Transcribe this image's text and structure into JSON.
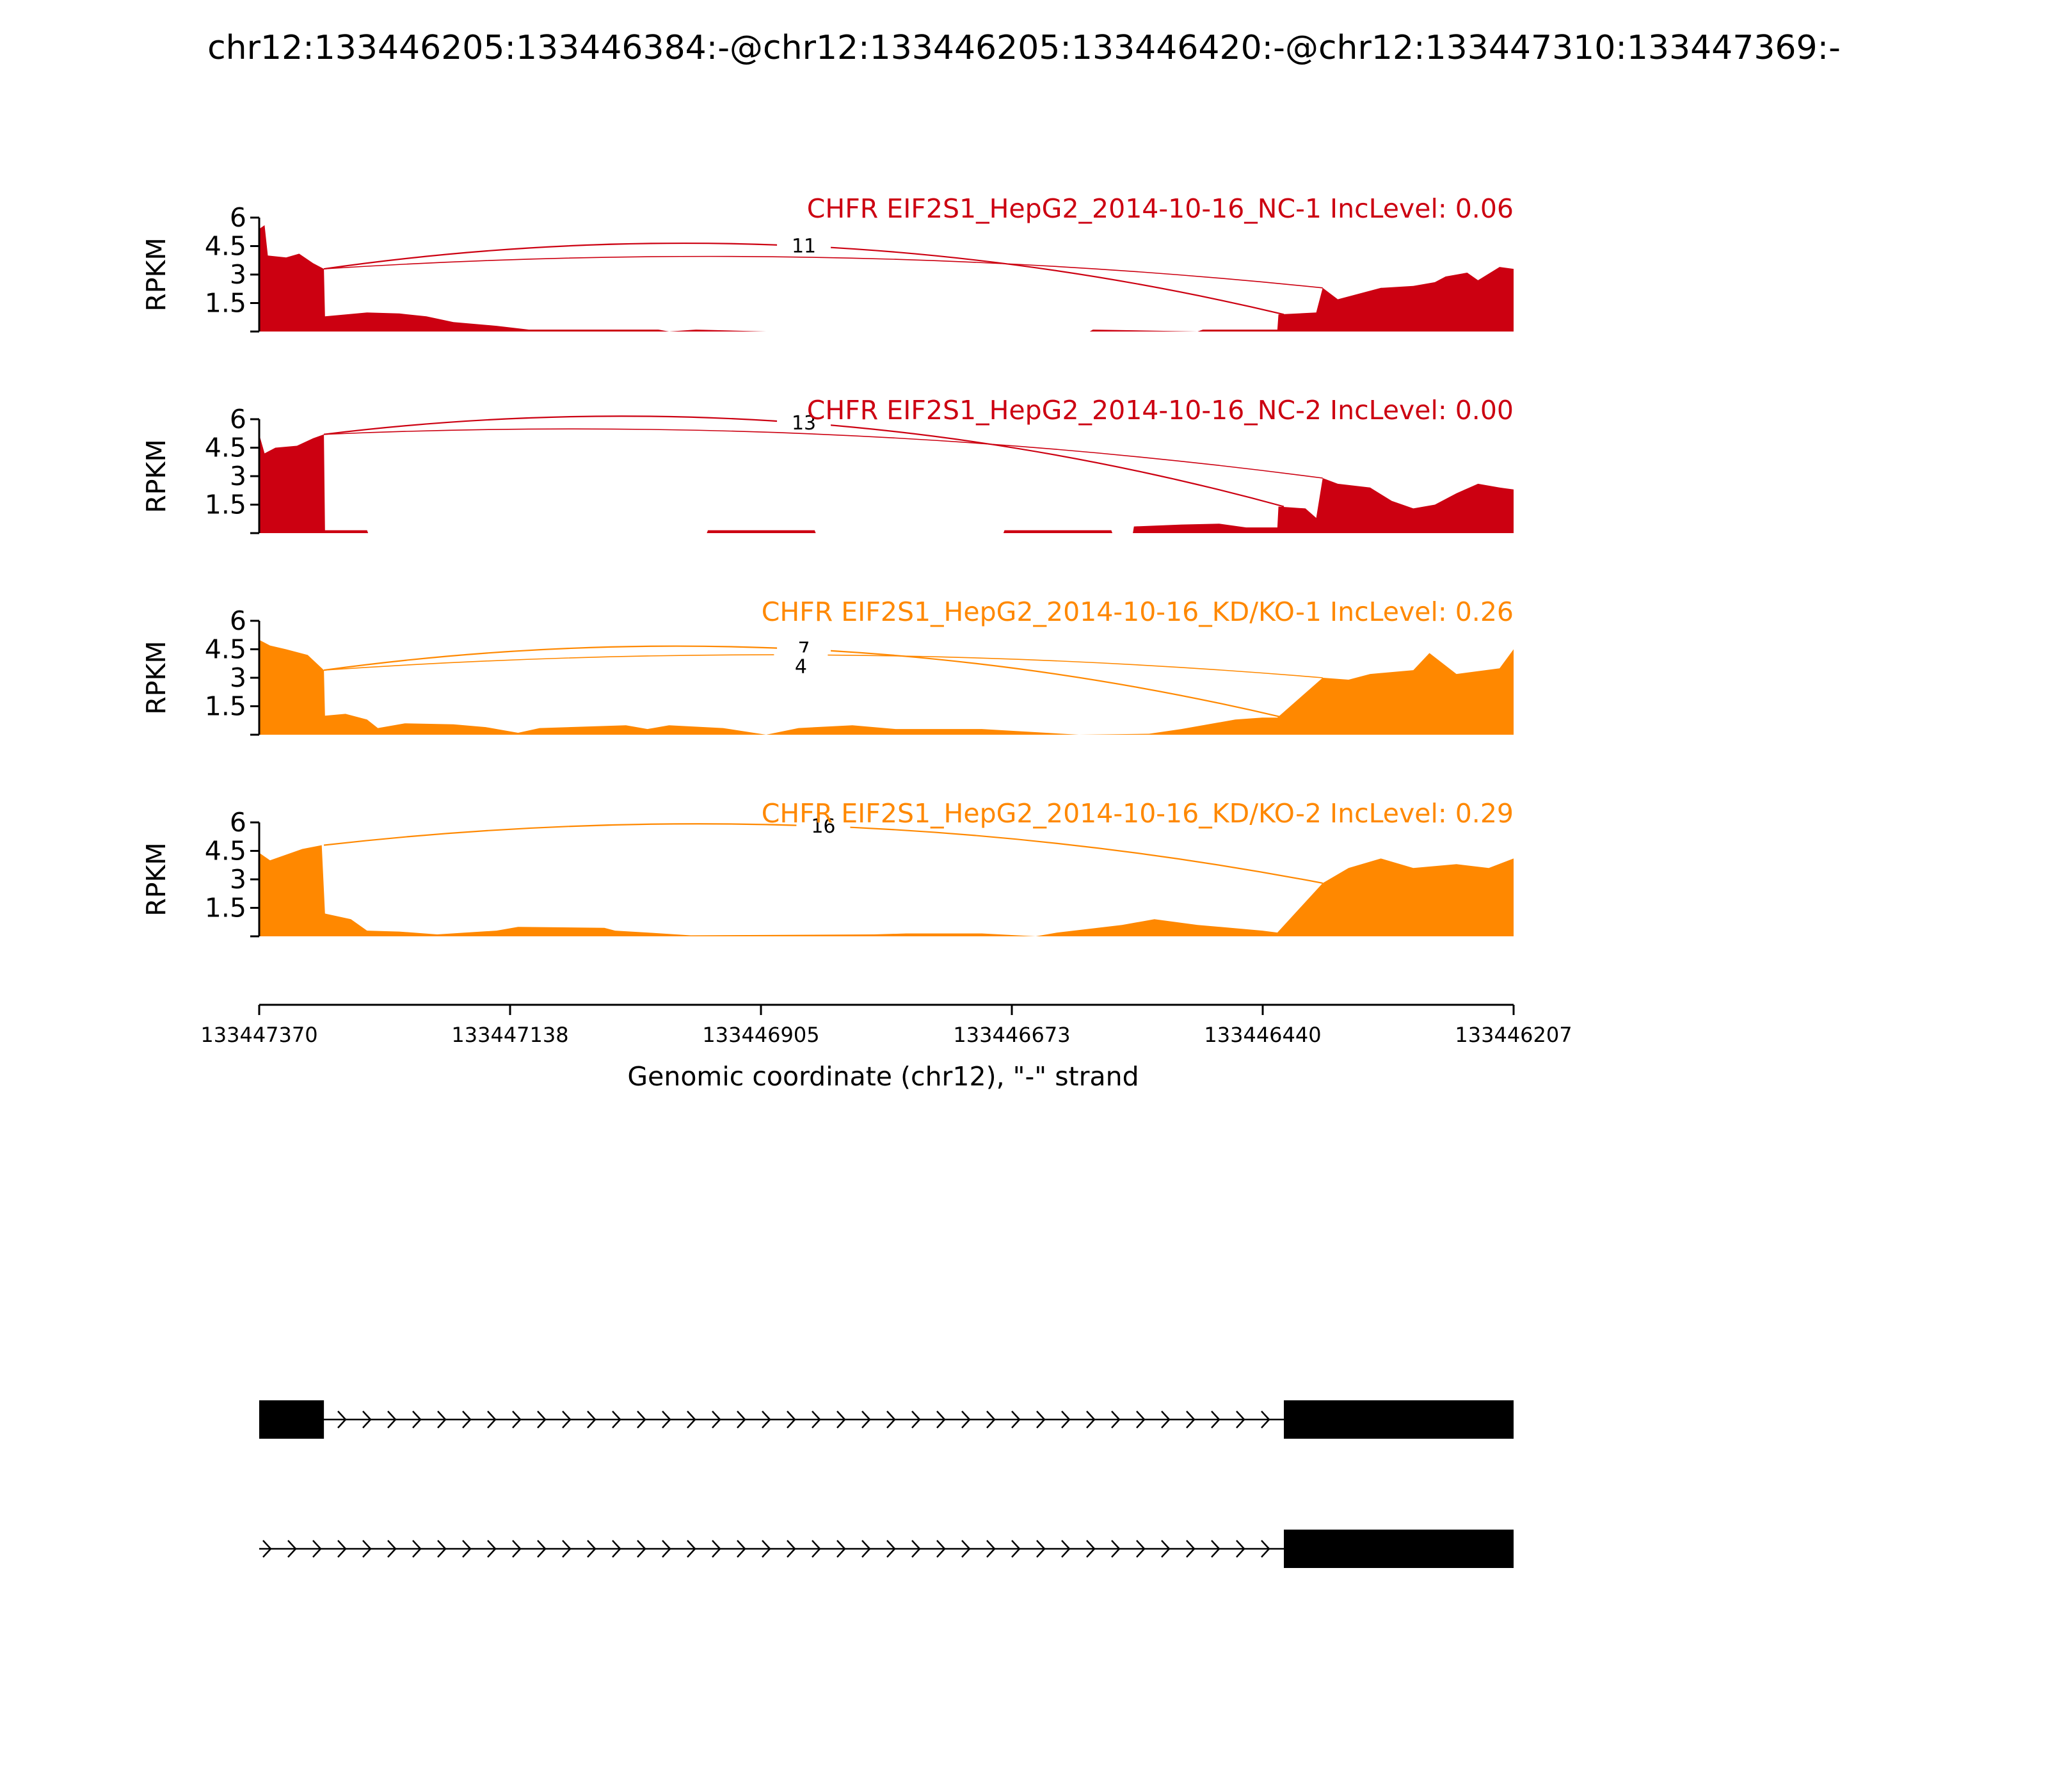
{
  "title": "chr12:133446205:133446384:-@chr12:133446205:133446420:-@chr12:133447310:133447369:-",
  "chart_data": {
    "type": "area",
    "title": "chr12:133446205:133446384:-@chr12:133446205:133446420:-@chr12:133447310:133447369:-",
    "xlabel": "Genomic coordinate (chr12), \"-\" strand",
    "x_ticks": [
      "133447370",
      "133447138",
      "133446905",
      "133446673",
      "133446440",
      "133446207"
    ],
    "xlim": [
      133447370,
      133446207
    ],
    "ylabel": "RPKM",
    "y_ticks": [
      "1.5",
      "3",
      "4.5",
      "6"
    ],
    "ylim": [
      0,
      6
    ],
    "grid": false,
    "tracks": [
      {
        "label": "CHFR EIF2S1_HepG2_2014-10-16_NC-1 IncLevel: 0.06",
        "color": "#cc0011",
        "junctions": [
          {
            "from": 133447310,
            "to": 133446420,
            "count": "11",
            "height": 4.5
          },
          {
            "from": 133447310,
            "to": 133446384,
            "count": "",
            "height": 3.9
          }
        ],
        "coverage": [
          [
            133447370,
            5.4
          ],
          [
            133447365,
            5.6
          ],
          [
            133447362,
            4.0
          ],
          [
            133447345,
            3.9
          ],
          [
            133447333,
            4.1
          ],
          [
            133447320,
            3.6
          ],
          [
            133447310,
            3.3
          ],
          [
            133447309,
            0.8
          ],
          [
            133447270,
            1.0
          ],
          [
            133447240,
            0.95
          ],
          [
            133447215,
            0.8
          ],
          [
            133447190,
            0.5
          ],
          [
            133447150,
            0.3
          ],
          [
            133447120,
            0.1
          ],
          [
            133447000,
            0.1
          ],
          [
            133446990,
            0.0
          ],
          [
            133446965,
            0.1
          ],
          [
            133446900,
            0.0
          ],
          [
            133446600,
            0.0
          ],
          [
            133446597,
            0.1
          ],
          [
            133446500,
            0.0
          ],
          [
            133446495,
            0.1
          ],
          [
            133446426,
            0.1
          ],
          [
            133446425,
            0.9
          ],
          [
            133446390,
            1.0
          ],
          [
            133446384,
            2.3
          ],
          [
            133446370,
            1.7
          ],
          [
            133446330,
            2.3
          ],
          [
            133446300,
            2.4
          ],
          [
            133446280,
            2.6
          ],
          [
            133446270,
            2.9
          ],
          [
            133446250,
            3.1
          ],
          [
            133446240,
            2.7
          ],
          [
            133446220,
            3.4
          ],
          [
            133446207,
            3.3
          ]
        ]
      },
      {
        "label": "CHFR EIF2S1_HepG2_2014-10-16_NC-2 IncLevel: 0.00",
        "color": "#cc0011",
        "junctions": [
          {
            "from": 133447310,
            "to": 133446420,
            "count": "13",
            "height": 5.8
          },
          {
            "from": 133447310,
            "to": 133446384,
            "count": "",
            "height": 5.2
          }
        ],
        "coverage": [
          [
            133447370,
            5.2
          ],
          [
            133447365,
            4.2
          ],
          [
            133447355,
            4.5
          ],
          [
            133447335,
            4.6
          ],
          [
            133447320,
            5.0
          ],
          [
            133447310,
            5.2
          ],
          [
            133447309,
            0.15
          ],
          [
            133447270,
            0.15
          ],
          [
            133447269,
            0.0
          ],
          [
            133446955,
            0.0
          ],
          [
            133446954,
            0.15
          ],
          [
            133446855,
            0.15
          ],
          [
            133446854,
            0.0
          ],
          [
            133446680,
            0.0
          ],
          [
            133446679,
            0.15
          ],
          [
            133446580,
            0.15
          ],
          [
            133446579,
            0.0
          ],
          [
            133446560,
            0.0
          ],
          [
            133446559,
            0.35
          ],
          [
            133446515,
            0.45
          ],
          [
            133446480,
            0.5
          ],
          [
            133446455,
            0.3
          ],
          [
            133446426,
            0.3
          ],
          [
            133446425,
            1.4
          ],
          [
            133446400,
            1.3
          ],
          [
            133446390,
            0.8
          ],
          [
            133446384,
            2.9
          ],
          [
            133446370,
            2.6
          ],
          [
            133446340,
            2.4
          ],
          [
            133446320,
            1.7
          ],
          [
            133446300,
            1.3
          ],
          [
            133446280,
            1.5
          ],
          [
            133446260,
            2.1
          ],
          [
            133446240,
            2.6
          ],
          [
            133446220,
            2.4
          ],
          [
            133446207,
            2.3
          ]
        ]
      },
      {
        "label": "CHFR EIF2S1_HepG2_2014-10-16_KD/KO-1 IncLevel: 0.26",
        "color": "#ff8800",
        "junctions": [
          {
            "from": 133447310,
            "to": 133446420,
            "count": "7",
            "height": 4.5
          },
          {
            "from": 133447310,
            "to": 133446384,
            "count": "4",
            "height": 4.2
          }
        ],
        "coverage": [
          [
            133447370,
            5.0
          ],
          [
            133447360,
            4.7
          ],
          [
            133447345,
            4.5
          ],
          [
            133447325,
            4.2
          ],
          [
            133447310,
            3.4
          ],
          [
            133447309,
            1.0
          ],
          [
            133447290,
            1.1
          ],
          [
            133447270,
            0.8
          ],
          [
            133447260,
            0.35
          ],
          [
            133447235,
            0.6
          ],
          [
            133447190,
            0.55
          ],
          [
            133447160,
            0.4
          ],
          [
            133447130,
            0.1
          ],
          [
            133447110,
            0.35
          ],
          [
            133447030,
            0.5
          ],
          [
            133447010,
            0.3
          ],
          [
            133446990,
            0.5
          ],
          [
            133446940,
            0.35
          ],
          [
            133446900,
            0.0
          ],
          [
            133446870,
            0.35
          ],
          [
            133446820,
            0.5
          ],
          [
            133446780,
            0.3
          ],
          [
            133446700,
            0.3
          ],
          [
            133446610,
            0.0
          ],
          [
            133446545,
            0.05
          ],
          [
            133446515,
            0.3
          ],
          [
            133446465,
            0.8
          ],
          [
            133446440,
            0.9
          ],
          [
            133446426,
            0.9
          ],
          [
            133446384,
            3.0
          ],
          [
            133446360,
            2.9
          ],
          [
            133446340,
            3.2
          ],
          [
            133446300,
            3.4
          ],
          [
            133446285,
            4.3
          ],
          [
            133446260,
            3.2
          ],
          [
            133446220,
            3.5
          ],
          [
            133446207,
            4.5
          ]
        ]
      },
      {
        "label": "CHFR EIF2S1_HepG2_2014-10-16_KD/KO-2 IncLevel: 0.29",
        "color": "#ff8800",
        "junctions": [
          {
            "from": 133447310,
            "to": 133446384,
            "count": "16",
            "height": 5.8
          }
        ],
        "coverage": [
          [
            133447370,
            4.4
          ],
          [
            133447360,
            4.0
          ],
          [
            133447330,
            4.6
          ],
          [
            133447312,
            4.8
          ],
          [
            133447309,
            1.2
          ],
          [
            133447285,
            0.9
          ],
          [
            133447270,
            0.3
          ],
          [
            133447240,
            0.25
          ],
          [
            133447205,
            0.1
          ],
          [
            133447150,
            0.3
          ],
          [
            133447130,
            0.5
          ],
          [
            133447050,
            0.45
          ],
          [
            133447040,
            0.3
          ],
          [
            133447010,
            0.2
          ],
          [
            133446970,
            0.05
          ],
          [
            133446800,
            0.1
          ],
          [
            133446770,
            0.15
          ],
          [
            133446700,
            0.15
          ],
          [
            133446650,
            0.0
          ],
          [
            133446630,
            0.2
          ],
          [
            133446570,
            0.6
          ],
          [
            133446540,
            0.9
          ],
          [
            133446500,
            0.6
          ],
          [
            133446440,
            0.3
          ],
          [
            133446426,
            0.2
          ],
          [
            133446384,
            2.8
          ],
          [
            133446360,
            3.6
          ],
          [
            133446330,
            4.1
          ],
          [
            133446300,
            3.6
          ],
          [
            133446260,
            3.8
          ],
          [
            133446230,
            3.6
          ],
          [
            133446207,
            4.1
          ]
        ]
      }
    ],
    "transcripts": [
      {
        "exons": [
          [
            133447370,
            133447310
          ],
          [
            133446420,
            133446207
          ]
        ],
        "intron_direction": "right"
      },
      {
        "exons": [
          [
            133446420,
            133446207
          ]
        ],
        "line_start": 133447370,
        "intron_direction": "right"
      }
    ]
  }
}
